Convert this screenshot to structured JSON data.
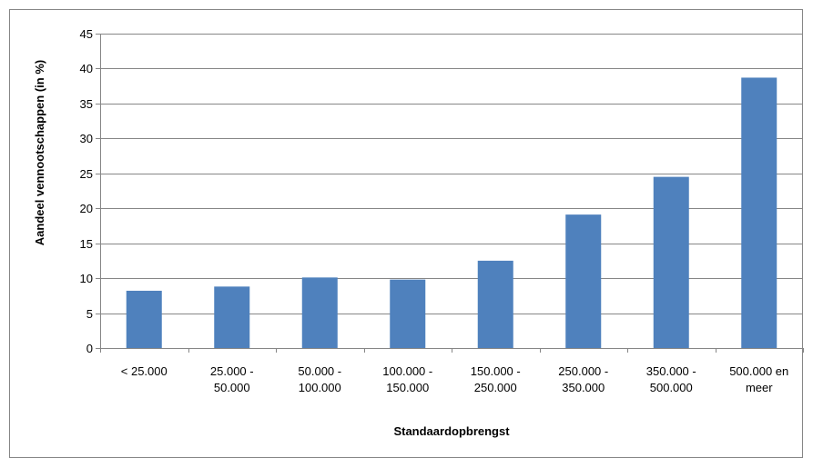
{
  "chart_data": {
    "type": "bar",
    "title": "",
    "xlabel": "Standaardopbrengst",
    "ylabel": "Aandeel vennootschappen (in %)",
    "categories": [
      [
        "< 25.000"
      ],
      [
        "25.000 -",
        "50.000"
      ],
      [
        "50.000 -",
        "100.000"
      ],
      [
        "100.000 -",
        "150.000"
      ],
      [
        "150.000 -",
        "250.000"
      ],
      [
        "250.000 -",
        "350.000"
      ],
      [
        "350.000 -",
        "500.000"
      ],
      [
        "500.000 en",
        "meer"
      ]
    ],
    "values": [
      8.2,
      8.8,
      10.1,
      9.8,
      12.5,
      19.1,
      24.5,
      38.7
    ],
    "ylim": [
      0,
      45
    ],
    "yticks": [
      "0",
      "5",
      "10",
      "15",
      "20",
      "25",
      "30",
      "35",
      "40",
      "45"
    ],
    "grid": true,
    "legend": "none",
    "bar_color": "#4f81bd",
    "grid_color": "#868686"
  }
}
